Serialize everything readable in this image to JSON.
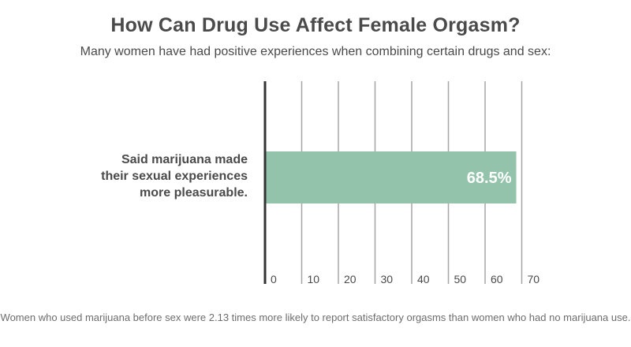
{
  "chart_data": {
    "type": "bar",
    "orientation": "horizontal",
    "title": "How Can Drug Use Affect Female Orgasm?",
    "subtitle": "Many women have had positive experiences when combining certain drugs and sex:",
    "categories": [
      "Said marijuana made their sexual experiences more pleasurable."
    ],
    "category_lines": [
      "Said marijuana made",
      "their sexual experiences",
      "more pleasurable."
    ],
    "values": [
      68.5
    ],
    "data_labels": [
      "68.5%"
    ],
    "xlim": [
      0,
      70
    ],
    "ticks": [
      0,
      10,
      20,
      30,
      40,
      50,
      60,
      70
    ],
    "tick_labels": [
      "0",
      "10",
      "20",
      "30",
      "40",
      "50",
      "60",
      "70"
    ],
    "grid": true,
    "bar_color": "#93c4ab",
    "grid_color": "#a6a6a6",
    "axis_color": "#333333",
    "footnote": "Women who used marijuana before sex were 2.13 times more likely to report satisfactory orgasms than women who had no marijuana use."
  }
}
